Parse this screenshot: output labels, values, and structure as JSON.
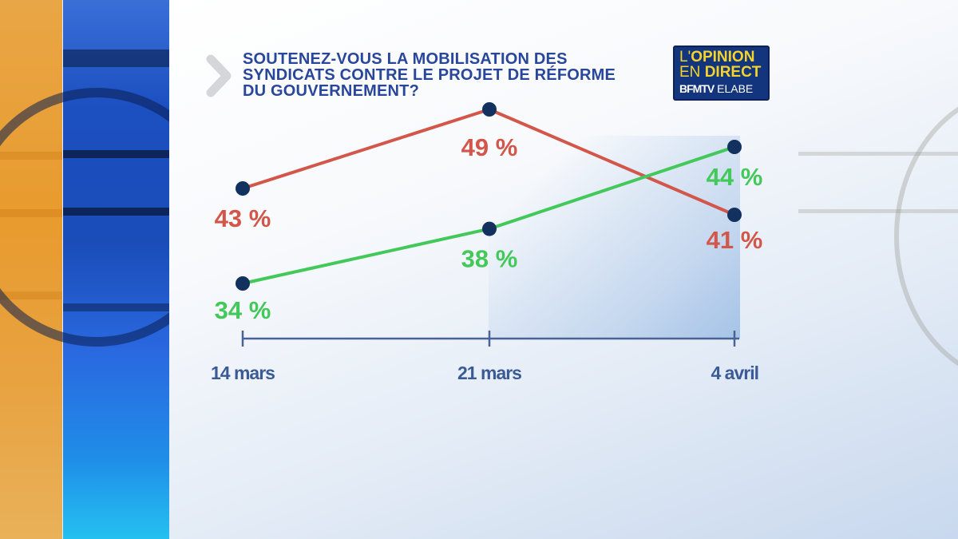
{
  "header": {
    "title_lines": [
      "SOUTENEZ-VOUS LA MOBILISATION DES",
      "SYNDICATS CONTRE LE PROJET DE RÉFORME",
      "DU GOUVERNEMENT?"
    ],
    "chevron_icon": "chevron-right-icon"
  },
  "logo": {
    "line1_thin": "L'",
    "line1_bold": "OPINION",
    "line2_thin": "EN ",
    "line2_bold": "DIRECT",
    "line3_bold": "BFMTV",
    "line3_thin": " ELABE"
  },
  "colors": {
    "title": "#28479a",
    "series_red": "#d2574a",
    "series_green": "#43c85a",
    "marker": "#13315f",
    "axis": "#4a6396",
    "logo_bg": "#13357e",
    "logo_text": "#f5d32b"
  },
  "chart_data": {
    "type": "line",
    "title": "SOUTENEZ-VOUS LA MOBILISATION DES SYNDICATS CONTRE LE PROJET DE RÉFORME DU GOUVERNEMENT?",
    "xlabel": "",
    "ylabel": "",
    "categories": [
      "14 mars",
      "21 mars",
      "4 avril"
    ],
    "series": [
      {
        "name": "red",
        "color": "#d2574a",
        "values": [
          43,
          49,
          41
        ],
        "labels": [
          "43 %",
          "49 %",
          "41 %"
        ]
      },
      {
        "name": "green",
        "color": "#43c85a",
        "values": [
          34,
          38,
          44
        ],
        "labels": [
          "34 %",
          "38 %",
          "44 %"
        ]
      }
    ],
    "grid": false,
    "legend": "none"
  }
}
